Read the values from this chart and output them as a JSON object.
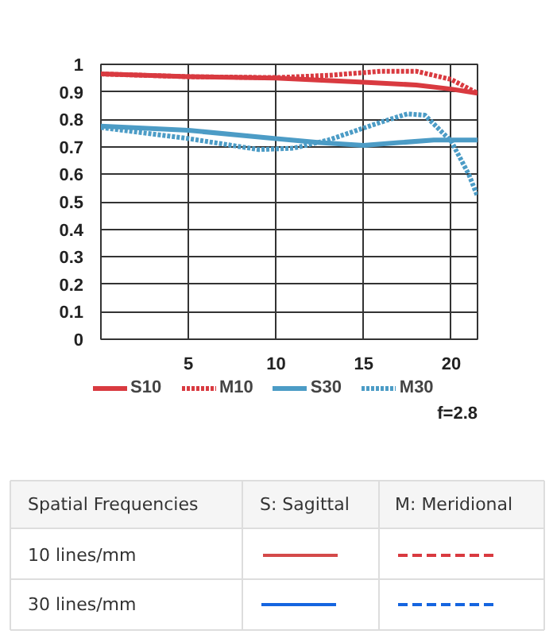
{
  "chart_data": {
    "type": "line",
    "xlim": [
      0,
      21.5
    ],
    "ylim": [
      0,
      1
    ],
    "xticks": [
      5,
      10,
      15,
      20
    ],
    "yticks": [
      0,
      0.1,
      0.2,
      0.3,
      0.4,
      0.5,
      0.6,
      0.7,
      0.8,
      0.9,
      1
    ],
    "grid": true,
    "legend": "bottom",
    "marker": "none",
    "series": [
      {
        "name": "S10",
        "color": "#d93a40",
        "line_style": "solid",
        "x": [
          0,
          5,
          10,
          15,
          18,
          20,
          21.5
        ],
        "values": [
          0.965,
          0.955,
          0.95,
          0.935,
          0.925,
          0.91,
          0.895
        ]
      },
      {
        "name": "M10",
        "color": "#d93a40",
        "line_style": "dotted",
        "x": [
          0,
          5,
          10,
          13,
          16,
          18,
          20,
          21.5
        ],
        "values": [
          0.965,
          0.955,
          0.952,
          0.96,
          0.975,
          0.975,
          0.945,
          0.895
        ]
      },
      {
        "name": "S30",
        "color": "#4c9cc6",
        "line_style": "solid",
        "x": [
          0,
          5,
          10,
          12.5,
          15,
          17,
          19,
          21.5
        ],
        "values": [
          0.775,
          0.76,
          0.73,
          0.715,
          0.705,
          0.715,
          0.725,
          0.725
        ]
      },
      {
        "name": "M30",
        "color": "#4c9cc6",
        "line_style": "dotted",
        "x": [
          0,
          5,
          9,
          11,
          13,
          16,
          17.5,
          18.5,
          20,
          21,
          21.5
        ],
        "values": [
          0.77,
          0.73,
          0.69,
          0.695,
          0.725,
          0.79,
          0.82,
          0.815,
          0.72,
          0.6,
          0.52
        ]
      }
    ],
    "annotations": [
      "f=2.8",
      "Spatial Frequencies",
      "S: Sagittal",
      "M: Meridional",
      "10 lines/mm",
      "30 lines/mm"
    ]
  }
}
